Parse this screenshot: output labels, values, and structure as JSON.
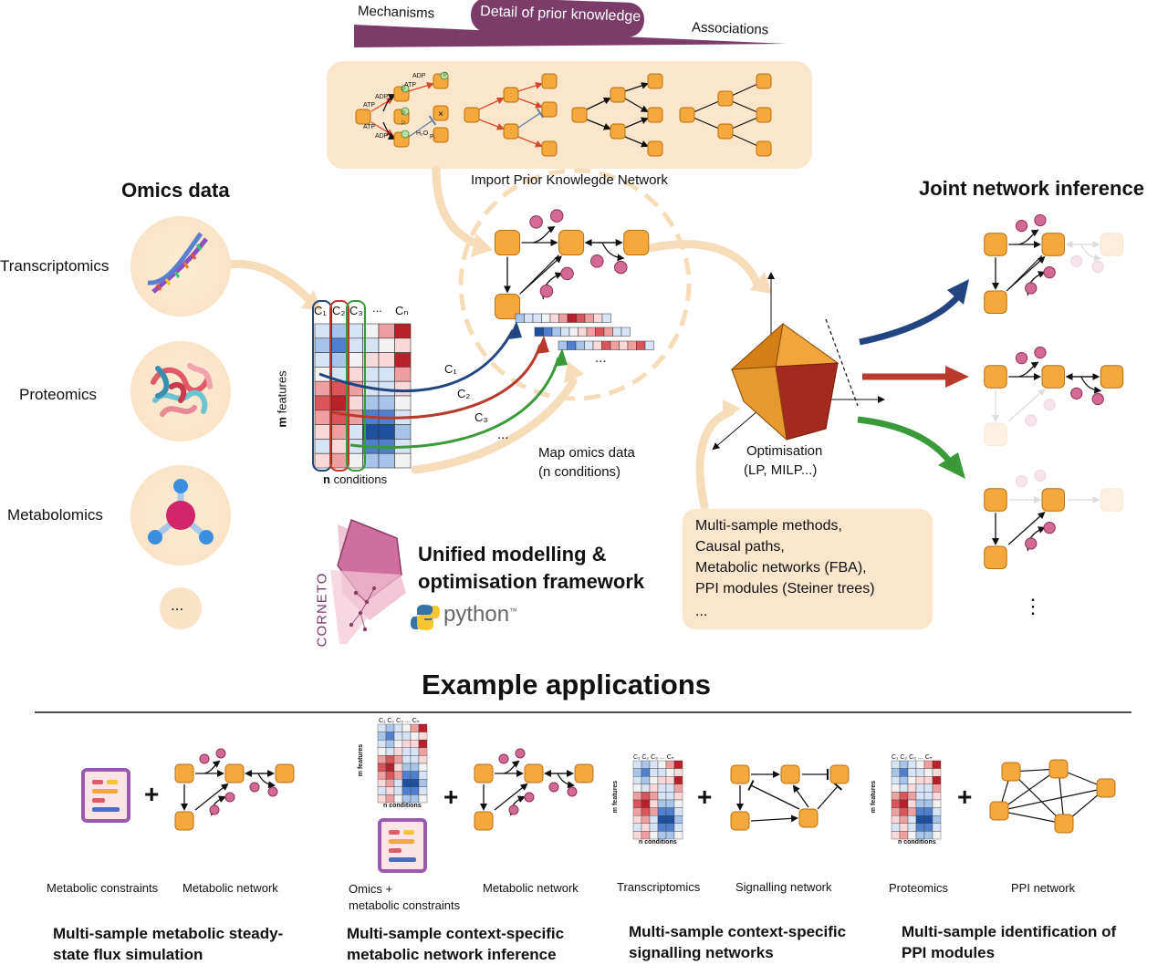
{
  "gradient": {
    "left_label": "Mechanisms",
    "center_label": "Detail of prior knowledge",
    "right_label": "Associations",
    "color": "#7b3c6a"
  },
  "pkn": {
    "caption": "Import Prior Knowlegde Network",
    "small_labels": [
      "ADP",
      "ATP",
      "ADP",
      "ATP",
      "ATP",
      "ADP",
      "H₂O",
      "P",
      "P",
      "P",
      "P",
      "Pᵢ"
    ]
  },
  "omics": {
    "title": "Omics data",
    "items": [
      {
        "label": "Transcriptomics",
        "icon": "dna-icon"
      },
      {
        "label": "Proteomics",
        "icon": "protein-icon"
      },
      {
        "label": "Metabolomics",
        "icon": "molecule-icon"
      },
      {
        "label": "...",
        "icon": "more-icon"
      }
    ]
  },
  "matrix": {
    "col_labels": [
      "C₁",
      "C₂",
      "C₃",
      "...",
      "Cₙ"
    ],
    "rows_label_bold": "m",
    "rows_label": " features",
    "cols_label_bold": "n",
    "cols_label": " conditions",
    "arrow_labels": [
      "C₁",
      "C₂",
      "C₃",
      "..."
    ]
  },
  "mapping": {
    "caption_line1": "Map omics data",
    "caption_line2": "(n conditions)",
    "ellipsis": "..."
  },
  "optimisation": {
    "line1": "Optimisation",
    "line2": "(LP, MILP...)"
  },
  "framework": {
    "title_line1": "Unified modelling &",
    "title_line2": "optimisation framework",
    "logo_text": "CORNETO",
    "python_text": "python",
    "python_tm": "™"
  },
  "methods": {
    "lines": [
      "Multi-sample methods,",
      "Causal paths,",
      "Metabolic networks (FBA),",
      "PPI modules (Steiner trees)",
      "..."
    ]
  },
  "joint": {
    "title": "Joint network inference",
    "ellipsis": "⋮",
    "arrow_colors": [
      "#22457f",
      "#b73a2c",
      "#3a9a3a"
    ]
  },
  "examples": {
    "title": "Example applications",
    "panels": [
      {
        "left_label": "Metabolic constraints",
        "right_label": "Metabolic network",
        "title": "Multi-sample metabolic steady-state flux simulation"
      },
      {
        "left_label": "Omics +\nmetabolic constraints",
        "right_label": "Metabolic network",
        "title": "Multi-sample context-specific metabolic network inference"
      },
      {
        "left_label": "Transcriptomics",
        "right_label": "Signalling network",
        "title": "Multi-sample context-specific signalling networks"
      },
      {
        "left_label": "Proteomics",
        "right_label": "PPI network",
        "title": "Multi-sample identification of PPI modules"
      }
    ],
    "plus": "+",
    "mini_matrix": {
      "col_labels": "C₁ C₂ C₃  ...   Cₙ",
      "rows_label": "m features",
      "cols_label": "n conditions"
    }
  },
  "colors": {
    "node": "#f5a93d",
    "node_stroke": "#b86f10",
    "metabolite": "#d36a96",
    "panel_bg": "#fbe6cc",
    "faded_arrow": "#f6d9b4"
  }
}
